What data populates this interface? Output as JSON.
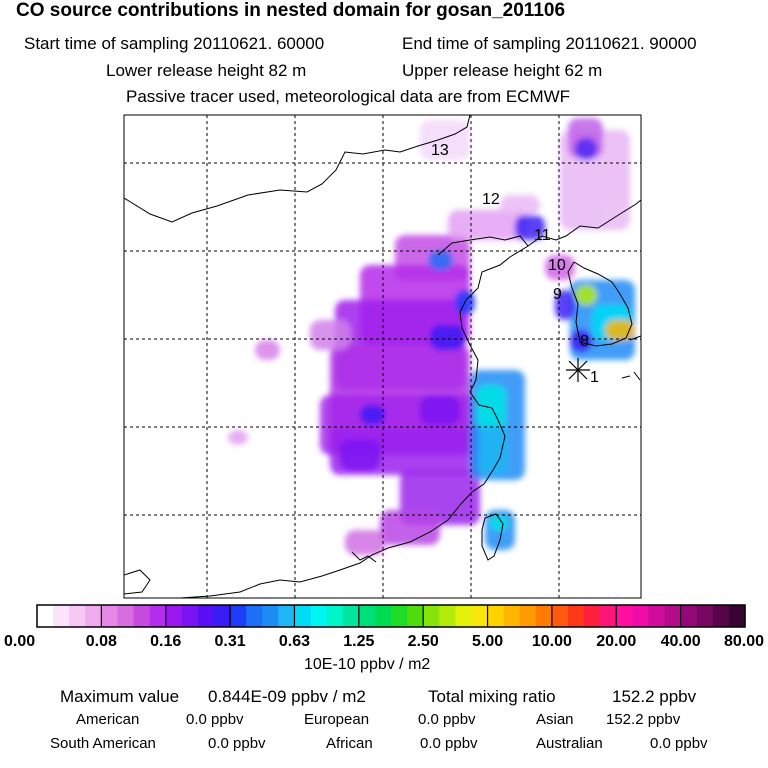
{
  "header": {
    "title": "CO  source contributions in nested domain for gosan_201106",
    "start_label": "Start time of sampling 20110621. 60000",
    "end_label": "End time of sampling 20110621. 90000",
    "lower_label": "Lower release height   82 m",
    "upper_label": "Upper release height   62 m",
    "tracer_label": "Passive tracer used, meteorological data are from ECMWF"
  },
  "chart_data": {
    "type": "heatmap",
    "title": "CO  source contributions in nested domain for gosan_201106",
    "units": "10E-10 ppbv / m2",
    "colorbar": {
      "tick_labels": [
        "0.00",
        "0.08",
        "0.16",
        "0.31",
        "0.63",
        "1.25",
        "2.50",
        "5.00",
        "10.00",
        "20.00",
        "40.00",
        "80.00"
      ],
      "colors": [
        "#ffffff",
        "#fbe4fb",
        "#f6c8f6",
        "#f0aaf0",
        "#e48ae6",
        "#d66ee0",
        "#c74ae0",
        "#b52cea",
        "#9b18ef",
        "#7b14f2",
        "#5a10f4",
        "#3c1cf6",
        "#1f3cfb",
        "#1e6ef6",
        "#1e8cf6",
        "#1eb6f6",
        "#00dcf6",
        "#00f6f2",
        "#00f6c8",
        "#00e6a0",
        "#00e07a",
        "#00dc52",
        "#1edc28",
        "#50dc0a",
        "#86e40a",
        "#b4ec0a",
        "#e2f00a",
        "#f6e60a",
        "#ffd200",
        "#ffb600",
        "#ff9a00",
        "#ff7a00",
        "#ff5a10",
        "#ff3818",
        "#ff1e3c",
        "#ff1478",
        "#ff10a0",
        "#f00ca8",
        "#d00c9c",
        "#b40a8c",
        "#96087a",
        "#760862",
        "#560648",
        "#3a0430"
      ]
    },
    "trajectory_labels": [
      "1",
      "8",
      "9",
      "10",
      "11",
      "12",
      "13"
    ],
    "receptor": "Gosan",
    "stats": {
      "max_label": "Maximum value",
      "max_value": "0.844E-09 ppbv / m2",
      "total_label": "Total mixing ratio",
      "total_value": "152.2 ppbv"
    },
    "contributions": [
      {
        "region": "American",
        "value": "0.0 ppbv"
      },
      {
        "region": "European",
        "value": "0.0 ppbv"
      },
      {
        "region": "Asian",
        "value": "152.2 ppbv"
      },
      {
        "region": "South American",
        "value": "0.0 ppbv"
      },
      {
        "region": "African",
        "value": "0.0 ppbv"
      },
      {
        "region": "Australian",
        "value": "0.0 ppbv"
      }
    ]
  }
}
